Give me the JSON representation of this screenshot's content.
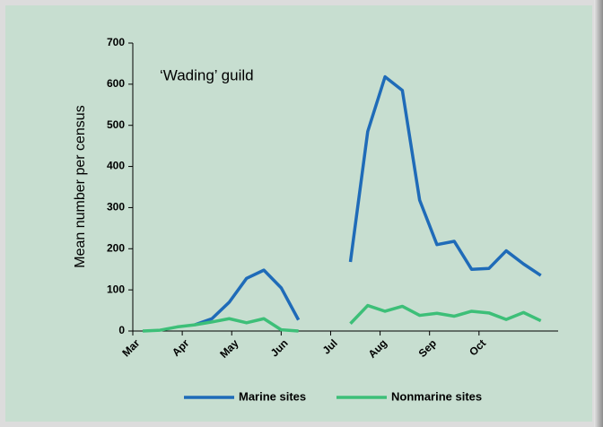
{
  "chart_data": {
    "type": "line",
    "annotation": "‘Wading’ guild",
    "y_label": "Mean number per census",
    "x": [
      0.2,
      0.55,
      0.9,
      1.25,
      1.6,
      1.95,
      2.3,
      2.65,
      3.0,
      3.35,
      3.7,
      4.05,
      4.4,
      4.75,
      5.1,
      5.45,
      5.8,
      6.15,
      6.5,
      6.85,
      7.2,
      7.55,
      7.9,
      8.25
    ],
    "series": [
      {
        "name": "Marine sites",
        "color": "#1f6bb8",
        "values": [
          null,
          null,
          null,
          15,
          30,
          70,
          128,
          148,
          105,
          27,
          null,
          null,
          168,
          485,
          618,
          585,
          318,
          210,
          218,
          150,
          152,
          195,
          163,
          135
        ]
      },
      {
        "name": "Nonmarine sites",
        "color": "#3dbf78",
        "values": [
          0,
          2,
          10,
          15,
          22,
          30,
          20,
          30,
          3,
          0,
          null,
          null,
          18,
          62,
          48,
          60,
          38,
          43,
          36,
          48,
          44,
          28,
          45,
          25
        ]
      }
    ],
    "xlim": [
      0,
      8.6
    ],
    "xticks": [
      {
        "value": 0,
        "label": "Mar"
      },
      {
        "value": 1,
        "label": "Apr"
      },
      {
        "value": 2,
        "label": "May"
      },
      {
        "value": 3,
        "label": "Jun"
      },
      {
        "value": 4,
        "label": "Jul"
      },
      {
        "value": 5,
        "label": "Aug"
      },
      {
        "value": 6,
        "label": "Sep"
      },
      {
        "value": 7,
        "label": "Oct"
      }
    ],
    "ylim": [
      0,
      700
    ],
    "yticks": [
      0,
      100,
      200,
      300,
      400,
      500,
      600,
      700
    ],
    "legend": "bottom"
  }
}
